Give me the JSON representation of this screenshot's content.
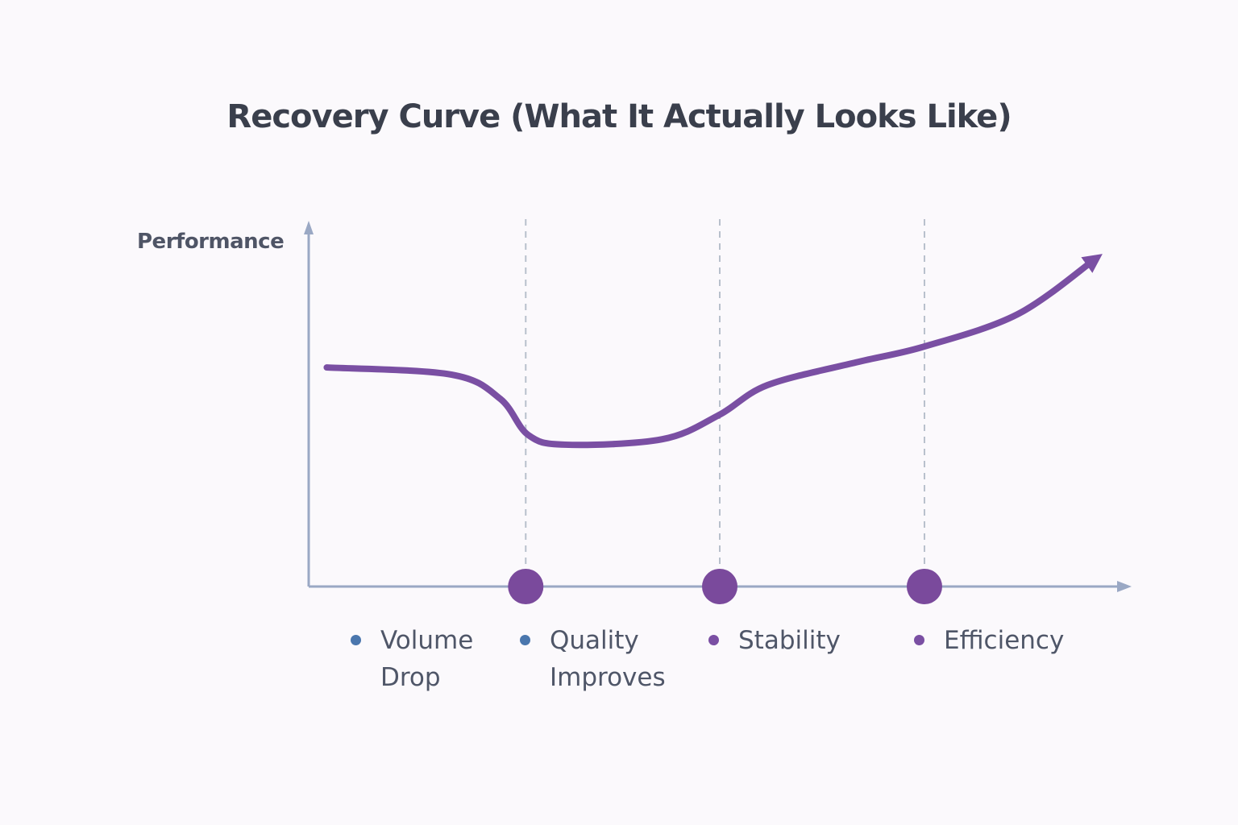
{
  "chart_data": {
    "type": "line",
    "title": "Recovery Curve (What It Actually Looks Like)",
    "ylabel": "Performance",
    "xlabel": "",
    "xlim": [
      0,
      100
    ],
    "ylim": [
      0,
      100
    ],
    "grid": false,
    "series": [
      {
        "name": "Performance",
        "color": "#7a4fa3",
        "x": [
          2.2,
          17.4,
          23.3,
          26.7,
          31.2,
          43,
          49.9,
          55.8,
          66.6,
          74.9,
          86.2,
          95.6
        ],
        "y": [
          60.7,
          58.7,
          52,
          42,
          39.3,
          40.8,
          47.5,
          55.8,
          62.1,
          66.5,
          75.4,
          90.6
        ]
      }
    ],
    "milestones_x": [
      26.4,
      50,
      74.9
    ],
    "phases": [
      {
        "line1": "Volume",
        "line2": "Drop",
        "color": "#4a76ad"
      },
      {
        "line1": "Quality",
        "line2": "Improves",
        "color": "#4a76ad"
      },
      {
        "line1": "Stability",
        "line2": "",
        "color": "#7a4fa3"
      },
      {
        "line1": "Efficiency",
        "line2": "",
        "color": "#7a4fa3"
      }
    ],
    "colors": {
      "axis": "#9aa8c4",
      "marker": "#7a4a9c",
      "guide": "#b8c0cc"
    }
  }
}
